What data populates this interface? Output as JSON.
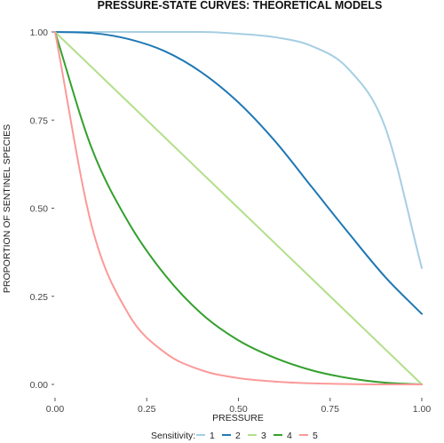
{
  "chart_data": {
    "type": "line",
    "title": "PRESSURE-STATE CURVES: THEORETICAL MODELS",
    "xlabel": "PRESSURE",
    "ylabel": "PROPORTION OF SENTINEL SPECIES",
    "xlim": [
      0,
      1
    ],
    "ylim": [
      0,
      1
    ],
    "x_ticks": [
      "0.00",
      "0.25",
      "0.50",
      "0.75",
      "1.00"
    ],
    "y_ticks": [
      "0.00",
      "0.25",
      "0.50",
      "0.75",
      "1.00"
    ],
    "grid": false,
    "legend": {
      "title": "Sensitivity:",
      "position": "bottom"
    },
    "x": [
      0,
      0.1,
      0.2,
      0.3,
      0.4,
      0.5,
      0.6,
      0.7,
      0.8,
      0.9,
      1.0
    ],
    "series": [
      {
        "name": "1",
        "color": "#a6cee3",
        "values": [
          1.0,
          1.0,
          1.0,
          1.0,
          1.0,
          0.995,
          0.985,
          0.96,
          0.895,
          0.73,
          0.33
        ]
      },
      {
        "name": "2",
        "color": "#1f78b4",
        "values": [
          1.0,
          0.997,
          0.98,
          0.945,
          0.885,
          0.8,
          0.69,
          0.56,
          0.43,
          0.305,
          0.2
        ]
      },
      {
        "name": "3",
        "color": "#b2df8a",
        "values": [
          1.0,
          0.9,
          0.8,
          0.7,
          0.6,
          0.5,
          0.4,
          0.3,
          0.2,
          0.1,
          0.0
        ]
      },
      {
        "name": "4",
        "color": "#33a02c",
        "values": [
          1.0,
          0.67,
          0.46,
          0.31,
          0.2,
          0.125,
          0.075,
          0.04,
          0.018,
          0.005,
          0.0
        ]
      },
      {
        "name": "5",
        "color": "#fb9a99",
        "values": [
          1.0,
          0.45,
          0.2,
          0.09,
          0.04,
          0.018,
          0.008,
          0.003,
          0.001,
          0.0,
          0.0
        ]
      }
    ]
  }
}
